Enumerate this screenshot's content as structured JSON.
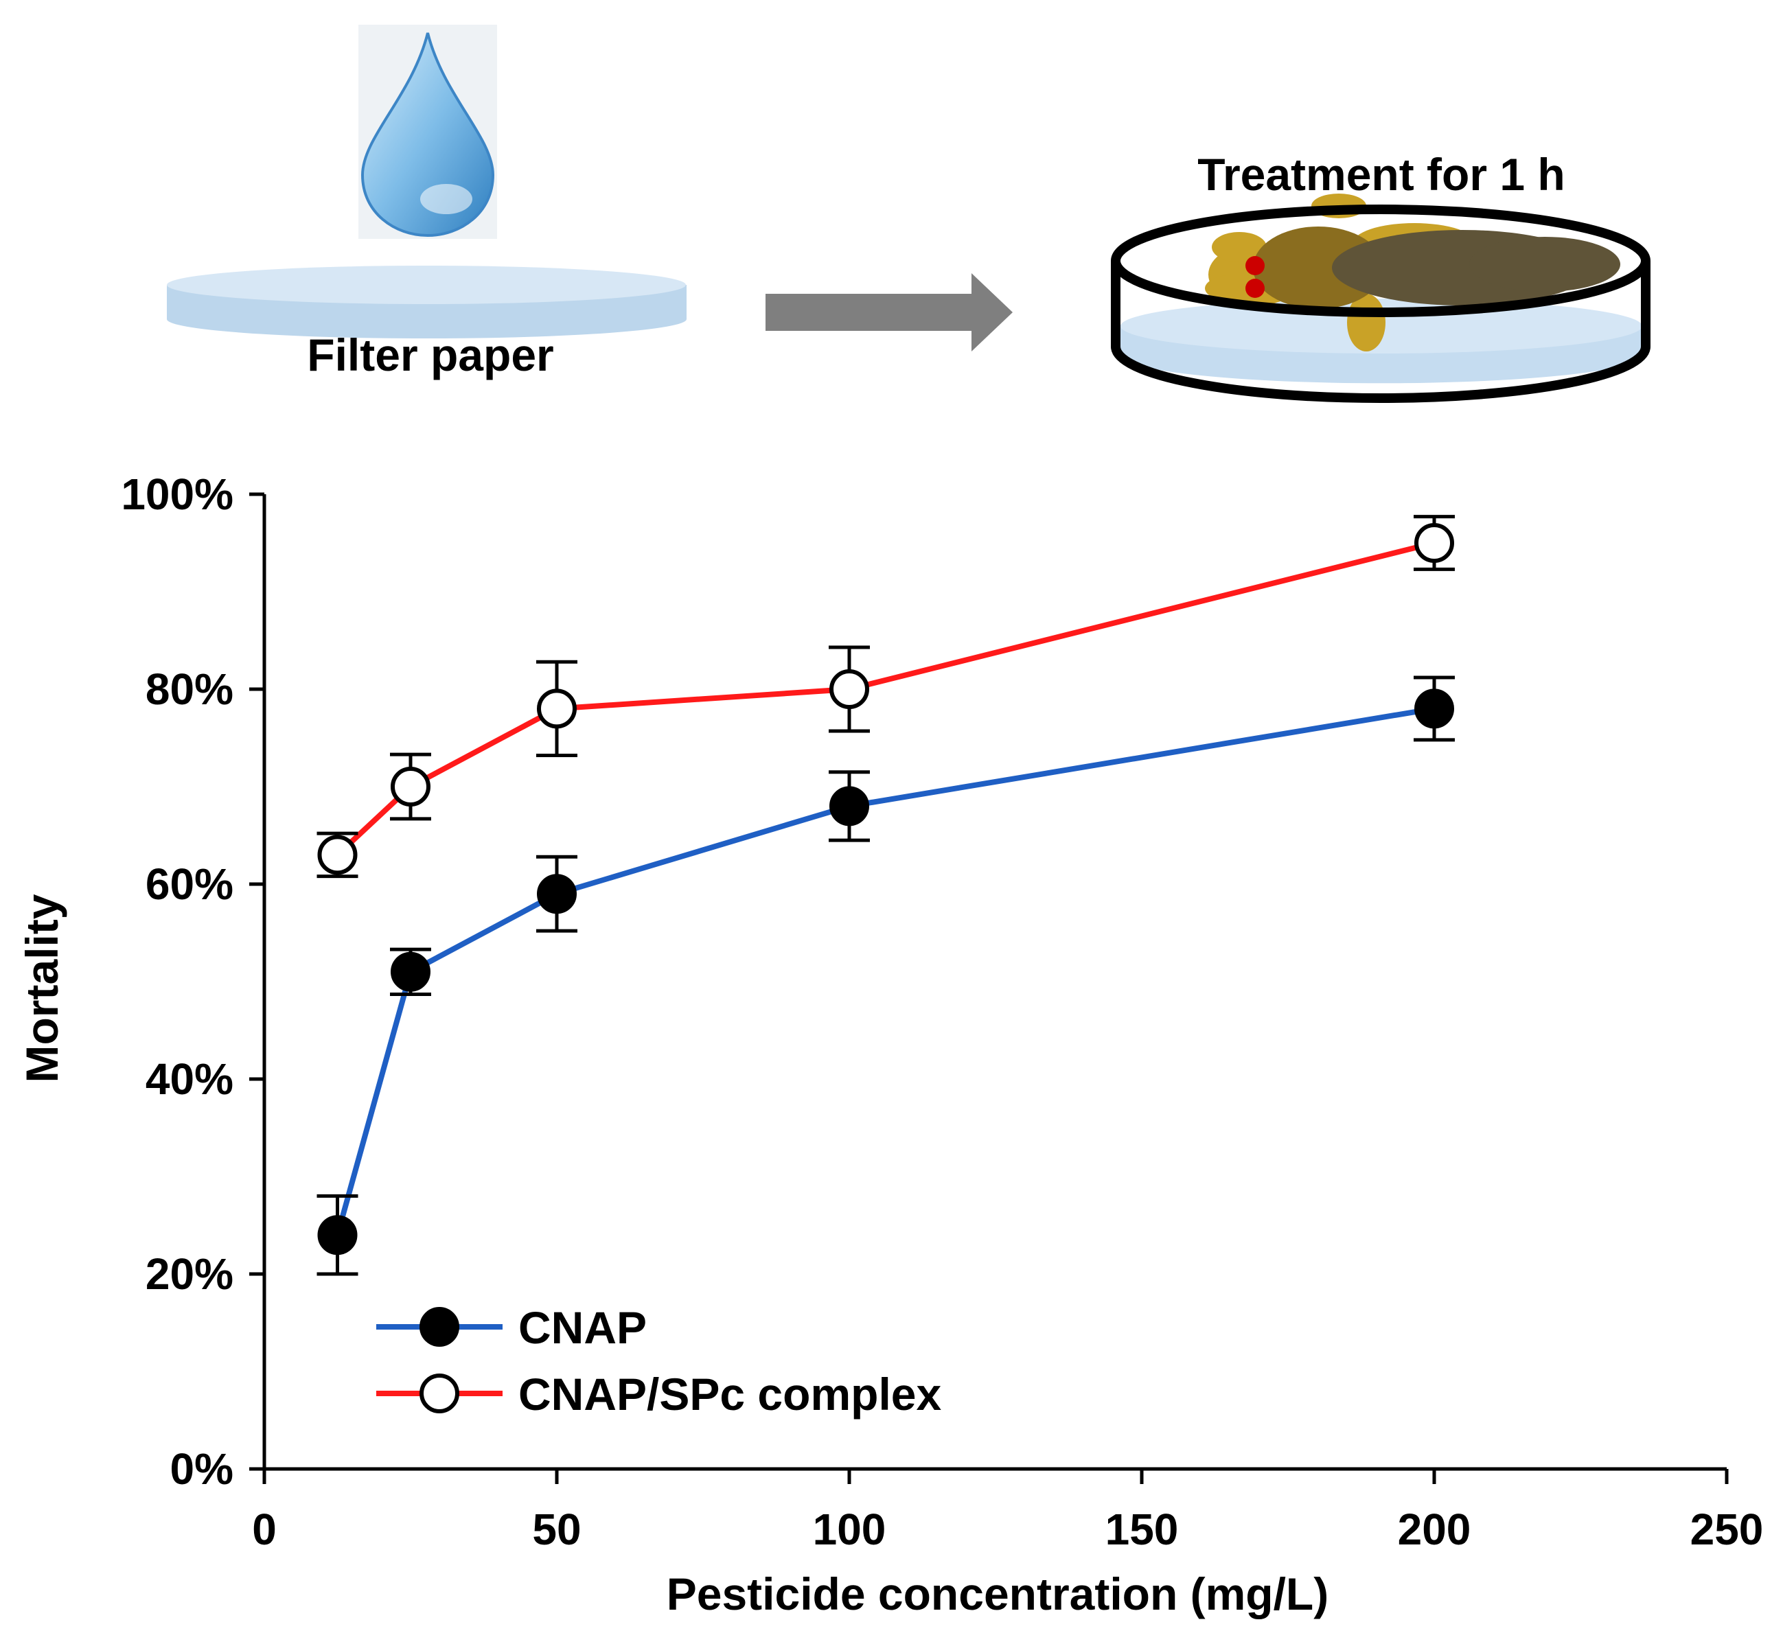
{
  "illustration": {
    "left_label": "Filter paper",
    "right_label": "Treatment for 1 h",
    "icons": [
      "water-drop-icon",
      "filter-paper-disc",
      "arrow-right-icon",
      "petri-dish-icon",
      "larva-icon"
    ],
    "colors": {
      "drop": "#7fbde8",
      "paper": "#cfe2f3",
      "arrow": "#7f7f7f",
      "larva_head": "#c9a227",
      "larva_body": "#5f5438",
      "larva_eye": "#cc0000"
    }
  },
  "chart_data": {
    "type": "line",
    "title": "",
    "xlabel": "Pesticide concentration (mg/L)",
    "ylabel": "Mortality",
    "xlim": [
      0,
      250
    ],
    "ylim": [
      0,
      100
    ],
    "x_ticks": [
      0,
      50,
      100,
      150,
      200,
      250
    ],
    "x_tick_labels": [
      "0",
      "50",
      "100",
      "150",
      "200",
      "250"
    ],
    "y_ticks": [
      0,
      20,
      40,
      60,
      80,
      100
    ],
    "y_tick_labels": [
      "0%",
      "20%",
      "40%",
      "60%",
      "80%",
      "100%"
    ],
    "grid": false,
    "legend_position": "bottom-left",
    "series": [
      {
        "name": "CNAP",
        "color": "#1f5fc4",
        "marker": "filled-circle",
        "x": [
          12.5,
          25,
          50,
          100,
          200
        ],
        "values": [
          24,
          51,
          59,
          68,
          78
        ],
        "errors": [
          4.0,
          2.3,
          3.8,
          3.5,
          3.2
        ]
      },
      {
        "name": "CNAP/SPc complex",
        "color": "#ff1a1a",
        "marker": "open-circle",
        "x": [
          12.5,
          25,
          50,
          100,
          200
        ],
        "values": [
          63,
          70,
          78,
          80,
          95
        ],
        "errors": [
          2.2,
          3.3,
          4.8,
          4.3,
          2.7
        ]
      }
    ]
  }
}
